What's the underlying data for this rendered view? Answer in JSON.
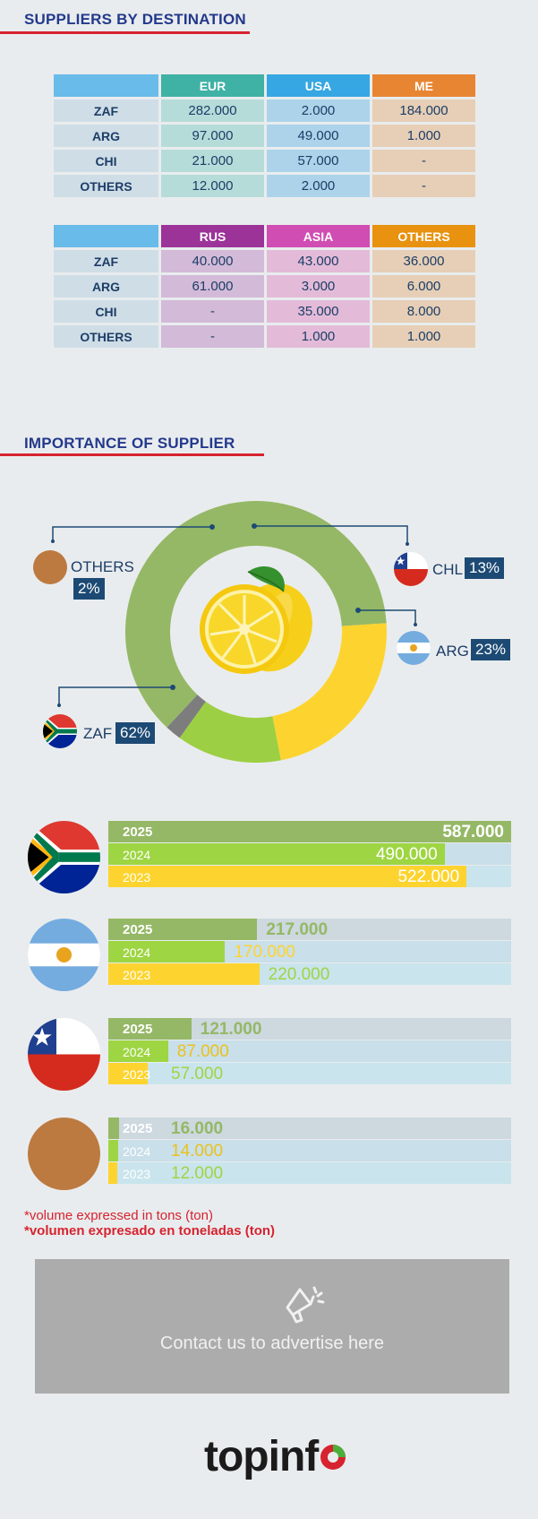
{
  "sections": {
    "destinations_title": "SUPPLIERS BY DESTINATION",
    "importance_title": "IMPORTANCE OF SUPPLIER"
  },
  "table1": {
    "headers": [
      "EUR",
      "USA",
      "ME"
    ],
    "header_colors": [
      "#3fb1a5",
      "#36a7e2",
      "#e88532"
    ],
    "cell_colors": [
      "#b6dcd9",
      "#acd3ea",
      "#e6cfb6"
    ],
    "rows": [
      {
        "label": "ZAF",
        "values": [
          "282.000",
          "2.000",
          "184.000"
        ]
      },
      {
        "label": "ARG",
        "values": [
          "97.000",
          "49.000",
          "1.000"
        ]
      },
      {
        "label": "CHI",
        "values": [
          "21.000",
          "57.000",
          "-"
        ]
      },
      {
        "label": "OTHERS",
        "values": [
          "12.000",
          "2.000",
          "-"
        ]
      }
    ]
  },
  "table2": {
    "headers": [
      "RUS",
      "ASIA",
      "OTHERS"
    ],
    "header_colors": [
      "#9b3399",
      "#d04db3",
      "#e8920f"
    ],
    "cell_colors": [
      "#d3bad8",
      "#e3bbd8",
      "#e6cfb6"
    ],
    "rows": [
      {
        "label": "ZAF",
        "values": [
          "40.000",
          "43.000",
          "36.000"
        ]
      },
      {
        "label": "ARG",
        "values": [
          "61.000",
          "3.000",
          "6.000"
        ]
      },
      {
        "label": "CHI",
        "values": [
          "-",
          "35.000",
          "8.000"
        ]
      },
      {
        "label": "OTHERS",
        "values": [
          "-",
          "1.000",
          "1.000"
        ]
      }
    ]
  },
  "donut_labels": {
    "others": {
      "name": "OTHERS",
      "pct": "2%"
    },
    "chl": {
      "name": "CHL",
      "pct": "13%"
    },
    "arg": {
      "name": "ARG",
      "pct": "23%"
    },
    "zaf": {
      "name": "ZAF",
      "pct": "62%"
    }
  },
  "chart_data": [
    {
      "type": "pie",
      "title": "IMPORTANCE OF SUPPLIER",
      "labels": [
        "ZAF",
        "ARG",
        "CHL",
        "OTHERS"
      ],
      "values": [
        62,
        23,
        13,
        2
      ],
      "colors": [
        "#95b866",
        "#fdd42f",
        "#9ccf43",
        "#7d7d7d"
      ]
    },
    {
      "type": "bar",
      "orientation": "horizontal",
      "categories": [
        "ZAF",
        "ARG",
        "CHL",
        "OTHERS"
      ],
      "max": 587000,
      "series": [
        {
          "name": "2025",
          "values": [
            587000,
            217000,
            121000,
            16000
          ],
          "labels": [
            "587.000",
            "217.000",
            "121.000",
            "16.000"
          ],
          "color": "#95b866",
          "track": "#cdd8df"
        },
        {
          "name": "2024",
          "values": [
            490000,
            170000,
            87000,
            14000
          ],
          "labels": [
            "490.000",
            "170.000",
            "87.000",
            "14.000"
          ],
          "color": "#9ed543",
          "track": "#c9dfe9"
        },
        {
          "name": "2023",
          "values": [
            522000,
            220000,
            57000,
            12000
          ],
          "labels": [
            "522.000",
            "220.000",
            "57.000",
            "12.000"
          ],
          "color": "#fdd42f",
          "track": "#c9e4ec"
        }
      ]
    }
  ],
  "notes": {
    "en": "*volume expressed in tons (ton)",
    "es": "*volumen expresado en toneladas (ton)"
  },
  "ad": {
    "text": "Contact us to advertise here",
    "icon": "megaphone-icon"
  },
  "logo": {
    "text": "topinf",
    "icon": "pie-o-icon"
  }
}
